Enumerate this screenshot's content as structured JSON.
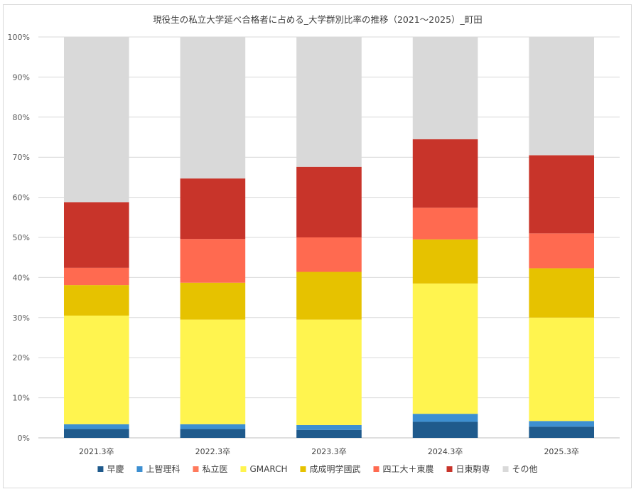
{
  "chart_data": {
    "type": "bar",
    "stacked": true,
    "title": "現役生の私立大学延べ合格者に占める_大学群別比率の推移（2021～2025）_町田",
    "categories": [
      "2021.3卒",
      "2022.3卒",
      "2023.3卒",
      "2024.3卒",
      "2025.3卒"
    ],
    "ylim": [
      0,
      100
    ],
    "yticks": [
      "0%",
      "10%",
      "20%",
      "30%",
      "40%",
      "50%",
      "60%",
      "70%",
      "80%",
      "90%",
      "100%"
    ],
    "grid": true,
    "legend_position": "bottom",
    "series": [
      {
        "name": "早慶",
        "color": "#1f5a8c",
        "values": [
          2.2,
          2.2,
          2.0,
          4.0,
          2.8
        ]
      },
      {
        "name": "上智理科",
        "color": "#3d8fd1",
        "values": [
          1.2,
          1.2,
          1.2,
          2.0,
          1.4
        ]
      },
      {
        "name": "私立医",
        "color": "#ff7a5c",
        "values": [
          0.0,
          0.0,
          0.0,
          0.0,
          0.0
        ]
      },
      {
        "name": "GMARCH",
        "color": "#fff44f",
        "values": [
          27.1,
          26.1,
          26.3,
          32.5,
          25.8
        ]
      },
      {
        "name": "成成明学國武",
        "color": "#e6c200",
        "values": [
          7.6,
          9.2,
          11.9,
          11.0,
          12.3
        ]
      },
      {
        "name": "四工大＋東農",
        "color": "#ff6a50",
        "values": [
          4.3,
          10.9,
          8.6,
          7.9,
          8.7
        ]
      },
      {
        "name": "日東駒専",
        "color": "#c8342a",
        "values": [
          16.4,
          15.1,
          17.6,
          17.1,
          19.5
        ]
      },
      {
        "name": "その他",
        "color": "#d9d9d9",
        "values": [
          41.2,
          35.3,
          32.4,
          25.5,
          29.5
        ]
      }
    ]
  }
}
